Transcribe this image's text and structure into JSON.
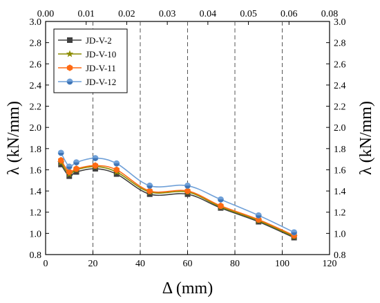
{
  "chart_data": {
    "type": "line",
    "xlabel": "Δ (mm)",
    "ylabel": "λ (kN/mm)",
    "y2label": "λ (kN/mm)",
    "xlim": [
      0,
      120
    ],
    "ylim": [
      0.8,
      3.0
    ],
    "x_ticks": [
      "0",
      "20",
      "40",
      "60",
      "80",
      "100",
      "120"
    ],
    "y_ticks": [
      "0.8",
      "1.0",
      "1.2",
      "1.4",
      "1.6",
      "1.8",
      "2.0",
      "2.2",
      "2.4",
      "2.6",
      "2.8",
      "3.0"
    ],
    "x2lim": [
      0,
      0.08
    ],
    "x2_ticks": [
      "0.00",
      "0.01",
      "0.02",
      "0.03",
      "0.04",
      "0.05",
      "0.06",
      "0.08"
    ],
    "grid": "vertical dashed at x = 20, 40, 60, 80, 100",
    "legend_position": "top-left",
    "series": [
      {
        "name": "JD-V-2",
        "color": "#404040",
        "marker": "square",
        "x": [
          6.5,
          10,
          13,
          21,
          30,
          44,
          60,
          74,
          90,
          105
        ],
        "y": [
          1.65,
          1.54,
          1.58,
          1.61,
          1.56,
          1.37,
          1.37,
          1.24,
          1.11,
          0.96
        ]
      },
      {
        "name": "JD-V-10",
        "color": "#8c8c00",
        "marker": "star",
        "x": [
          6.5,
          10,
          13,
          21,
          30,
          44,
          60,
          74,
          90,
          105
        ],
        "y": [
          1.67,
          1.56,
          1.6,
          1.63,
          1.58,
          1.39,
          1.39,
          1.25,
          1.12,
          0.97
        ]
      },
      {
        "name": "JD-V-11",
        "color": "#ff6a13",
        "marker": "hexagon",
        "x": [
          6.5,
          10,
          13,
          21,
          30,
          44,
          60,
          74,
          90,
          105
        ],
        "y": [
          1.69,
          1.58,
          1.61,
          1.64,
          1.6,
          1.4,
          1.4,
          1.26,
          1.13,
          0.98
        ]
      },
      {
        "name": "JD-V-12",
        "color": "#6fa0d8",
        "marker": "circle",
        "x": [
          6.5,
          10,
          13,
          21,
          30,
          44,
          60,
          74,
          90,
          105
        ],
        "y": [
          1.76,
          1.63,
          1.67,
          1.71,
          1.66,
          1.45,
          1.45,
          1.32,
          1.17,
          1.01
        ]
      }
    ]
  }
}
